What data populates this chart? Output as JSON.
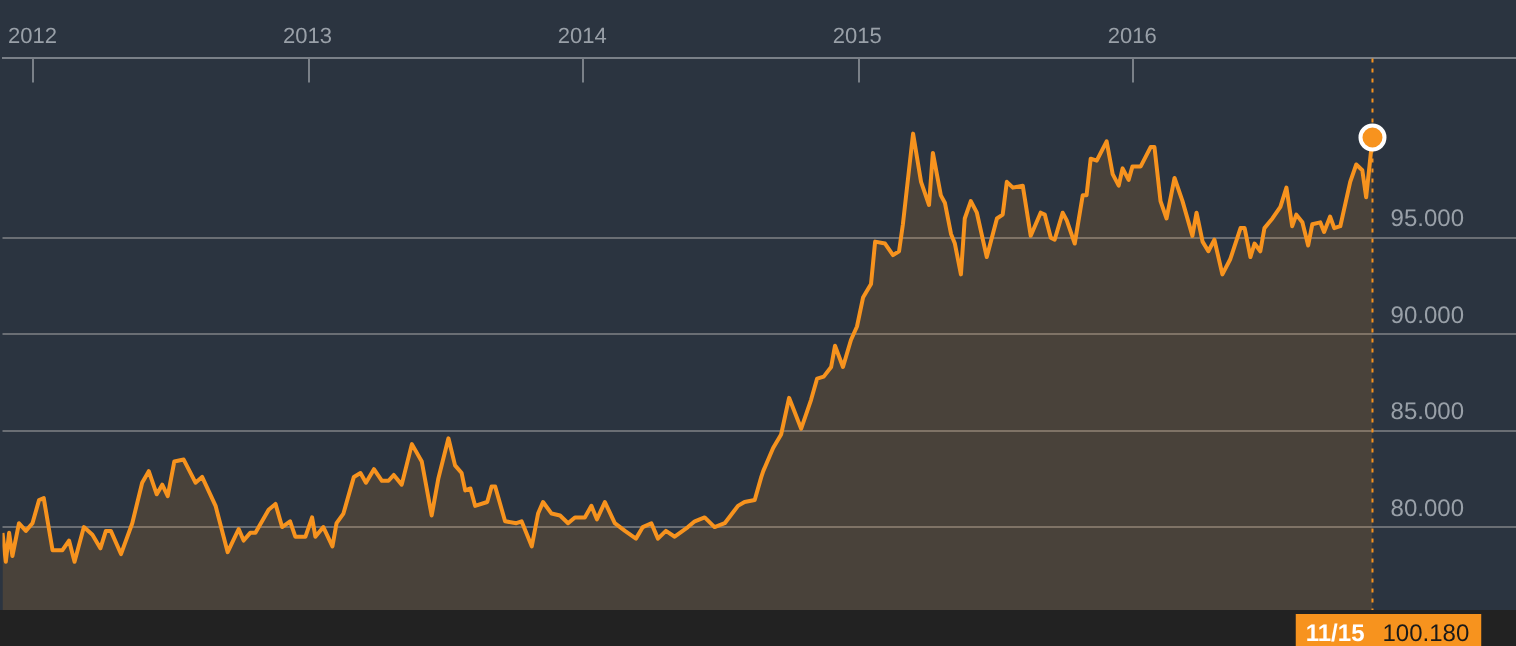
{
  "chart_data": {
    "type": "area",
    "x": [
      2011.891,
      2011.903,
      2011.915,
      2011.927,
      2011.951,
      2011.976,
      2012.0,
      2012.024,
      2012.041,
      2012.073,
      2012.109,
      2012.133,
      2012.153,
      2012.187,
      2012.218,
      2012.247,
      2012.267,
      2012.285,
      2012.322,
      2012.363,
      2012.399,
      2012.423,
      2012.452,
      2012.472,
      2012.492,
      2012.516,
      2012.55,
      2012.593,
      2012.617,
      2012.666,
      2012.71,
      2012.75,
      2012.768,
      2012.792,
      2012.811,
      2012.859,
      2012.884,
      2012.908,
      2012.937,
      2012.956,
      2012.993,
      2013.017,
      2013.029,
      2013.058,
      2013.091,
      2013.106,
      2013.131,
      2013.169,
      2013.193,
      2013.213,
      2013.242,
      2013.271,
      2013.295,
      2013.314,
      2013.343,
      2013.38,
      2013.416,
      2013.452,
      2013.476,
      2013.513,
      2013.537,
      2013.561,
      2013.574,
      2013.593,
      2013.61,
      2013.654,
      2013.67,
      2013.683,
      2013.719,
      2013.76,
      2013.779,
      2013.816,
      2013.839,
      2013.857,
      2013.888,
      2013.919,
      2013.948,
      2013.973,
      2014.009,
      2014.033,
      2014.053,
      2014.082,
      2014.118,
      2014.155,
      2014.195,
      2014.22,
      2014.251,
      2014.275,
      2014.304,
      2014.336,
      2014.384,
      2014.409,
      2014.445,
      2014.481,
      2014.518,
      2014.566,
      2014.59,
      2014.627,
      2014.651,
      2014.658,
      2014.694,
      2014.723,
      2014.752,
      2014.796,
      2014.832,
      2014.854,
      2014.878,
      2014.905,
      2014.919,
      2014.948,
      2014.977,
      2014.999,
      2015.021,
      2015.05,
      2015.065,
      2015.101,
      2015.13,
      2015.152,
      2015.166,
      2015.203,
      2015.232,
      2015.261,
      2015.275,
      2015.304,
      2015.319,
      2015.341,
      2015.355,
      2015.377,
      2015.391,
      2015.413,
      2015.435,
      2015.471,
      2015.508,
      2015.529,
      2015.544,
      2015.566,
      2015.602,
      2015.631,
      2015.667,
      2015.682,
      2015.704,
      2015.718,
      2015.747,
      2015.762,
      2015.791,
      2015.82,
      2015.834,
      2015.849,
      2015.871,
      2015.907,
      2015.929,
      2015.951,
      2015.965,
      2015.987,
      2016.001,
      2016.031,
      2016.067,
      2016.081,
      2016.103,
      2016.125,
      2016.154,
      2016.183,
      2016.219,
      2016.234,
      2016.256,
      2016.277,
      2016.299,
      2016.328,
      2016.357,
      2016.394,
      2016.409,
      2016.43,
      2016.445,
      2016.466,
      2016.481,
      2016.51,
      2016.539,
      2016.561,
      2016.582,
      2016.597,
      2016.619,
      2016.64,
      2016.655,
      2016.684,
      2016.698,
      2016.72,
      2016.735,
      2016.757,
      2016.793,
      2016.815,
      2016.837,
      2016.851,
      2016.874
    ],
    "series": [
      {
        "color": "#f7931e",
        "values": [
          79.7,
          78.2,
          79.7,
          78.5,
          80.2,
          79.8,
          80.2,
          81.4,
          81.5,
          78.8,
          78.8,
          79.3,
          78.2,
          80.0,
          79.6,
          78.9,
          79.8,
          79.8,
          78.6,
          80.2,
          82.3,
          82.9,
          81.7,
          82.2,
          81.6,
          83.4,
          83.5,
          82.3,
          82.6,
          81.1,
          78.7,
          79.9,
          79.3,
          79.7,
          79.7,
          80.9,
          81.2,
          80.0,
          80.3,
          79.5,
          79.5,
          80.5,
          79.5,
          80.0,
          79.0,
          80.2,
          80.7,
          82.6,
          82.8,
          82.3,
          83.0,
          82.4,
          82.4,
          82.7,
          82.2,
          84.3,
          83.4,
          80.6,
          82.5,
          84.6,
          83.2,
          82.8,
          81.9,
          82.0,
          81.1,
          81.3,
          82.1,
          82.1,
          80.3,
          80.2,
          80.3,
          79.0,
          80.7,
          81.3,
          80.7,
          80.6,
          80.2,
          80.5,
          80.5,
          81.1,
          80.4,
          81.3,
          80.2,
          79.8,
          79.4,
          80.0,
          80.2,
          79.4,
          79.8,
          79.5,
          80.0,
          80.3,
          80.5,
          80.0,
          80.2,
          81.1,
          81.3,
          81.4,
          82.6,
          82.9,
          84.1,
          84.8,
          86.7,
          85.1,
          86.6,
          87.7,
          87.8,
          88.3,
          89.4,
          88.3,
          89.7,
          90.4,
          91.9,
          92.6,
          94.8,
          94.7,
          94.1,
          94.3,
          95.7,
          100.4,
          97.9,
          96.7,
          99.4,
          97.2,
          96.8,
          95.2,
          94.7,
          93.1,
          96.0,
          96.9,
          96.3,
          94.0,
          96.0,
          96.2,
          97.9,
          97.6,
          97.7,
          95.1,
          96.3,
          96.2,
          95.0,
          94.9,
          96.3,
          95.9,
          94.7,
          97.2,
          97.2,
          99.1,
          99.0,
          100.0,
          98.3,
          97.7,
          98.6,
          98.0,
          98.7,
          98.7,
          99.7,
          99.7,
          96.9,
          96.0,
          98.1,
          96.9,
          95.1,
          96.3,
          94.8,
          94.3,
          94.9,
          93.1,
          93.9,
          95.5,
          95.5,
          94.0,
          94.7,
          94.3,
          95.5,
          96.0,
          96.6,
          97.6,
          95.6,
          96.2,
          95.8,
          94.6,
          95.7,
          95.8,
          95.3,
          96.1,
          95.5,
          95.6,
          97.9,
          98.8,
          98.5,
          97.1,
          100.2
        ]
      }
    ],
    "xlim": [
      2011.891,
      2017.396
    ],
    "xticks": [
      2012,
      2013,
      2014,
      2015,
      2016
    ],
    "ylim": [
      75.7,
      104.3
    ],
    "yticks": [
      {
        "value": 80,
        "label": "80.000"
      },
      {
        "value": 85,
        "label": "85.000"
      },
      {
        "value": 90,
        "label": "90.000"
      },
      {
        "value": 95,
        "label": "95.000"
      }
    ],
    "grid": "y",
    "legend": false,
    "ref_lines": [
      {
        "axis": "x",
        "value": 2016.874,
        "color": "#f7931e",
        "line_style": "dotted"
      }
    ],
    "annotations": [
      "11/15",
      "100.180"
    ]
  }
}
